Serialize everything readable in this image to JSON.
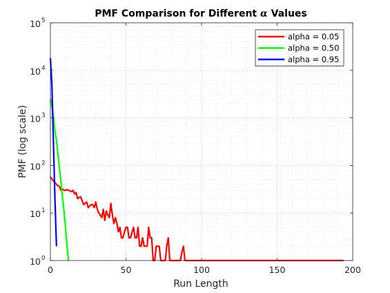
{
  "chart_data": {
    "type": "line",
    "title_prefix": "PMF Comparison for Different ",
    "title_symbol": "α",
    "title_suffix": " Values",
    "xlabel": "Run Length",
    "ylabel": "PMF (log scale)",
    "xlim": [
      0,
      200
    ],
    "ylim": [
      1,
      100000
    ],
    "yscale": "log",
    "xticks": [
      0,
      50,
      100,
      150,
      200
    ],
    "yticks_exponents": [
      0,
      1,
      2,
      3,
      4,
      5
    ],
    "ytick_base": "10",
    "grid": true,
    "minor_grid": true,
    "legend_position": "top-right",
    "series": [
      {
        "name": "alpha = 0.05",
        "color": "#ff0000",
        "x": [
          0,
          1,
          2,
          3,
          4,
          5,
          6,
          7,
          8,
          9,
          10,
          11,
          12,
          13,
          14,
          15,
          16,
          17,
          18,
          19,
          20,
          21,
          22,
          23,
          24,
          25,
          26,
          27,
          28,
          29,
          30,
          31,
          32,
          33,
          34,
          35,
          36,
          37,
          38,
          39,
          40,
          41,
          42,
          43,
          44,
          45,
          46,
          47,
          48,
          49,
          50,
          51,
          52,
          53,
          54,
          55,
          56,
          57,
          58,
          59,
          60,
          61,
          62,
          63,
          64,
          65,
          66,
          67,
          68,
          69,
          70,
          71,
          72,
          73,
          74,
          75,
          76,
          77,
          78,
          79,
          80,
          81,
          82,
          83,
          84,
          85,
          86,
          87,
          88,
          89,
          90,
          100,
          120,
          140,
          160,
          180,
          194
        ],
        "values": [
          58,
          52,
          47,
          44,
          40,
          37,
          36,
          30,
          32,
          30,
          30,
          31,
          30,
          29,
          28,
          30,
          25,
          27,
          20,
          21,
          22,
          18,
          15,
          16,
          17,
          13,
          14,
          15,
          15,
          13,
          17,
          12,
          10,
          9,
          8,
          12,
          7,
          11,
          9,
          8,
          16,
          9,
          6,
          8,
          6,
          4,
          5,
          3,
          3,
          4,
          5,
          5,
          3,
          3,
          4,
          5,
          3,
          3,
          5,
          2,
          2,
          3,
          2,
          2,
          2,
          5,
          3,
          3,
          1,
          1,
          2,
          2,
          2,
          1,
          1,
          1,
          1,
          2,
          3,
          1,
          1,
          1,
          1,
          1,
          1,
          1,
          1,
          1.5,
          2,
          1,
          1,
          1,
          1,
          1,
          1,
          1,
          1
        ]
      },
      {
        "name": "alpha = 0.50",
        "color": "#00ff00",
        "x": [
          0,
          1,
          2,
          3,
          4,
          5,
          6,
          7,
          8,
          9,
          10,
          11,
          12
        ],
        "values": [
          2500,
          1700,
          1100,
          520,
          340,
          170,
          90,
          45,
          22,
          11,
          5,
          2,
          1
        ]
      },
      {
        "name": "alpha = 0.95",
        "color": "#0000ff",
        "x": [
          0,
          1,
          2,
          3,
          4
        ],
        "values": [
          18000,
          5000,
          300,
          20,
          2
        ]
      }
    ]
  }
}
